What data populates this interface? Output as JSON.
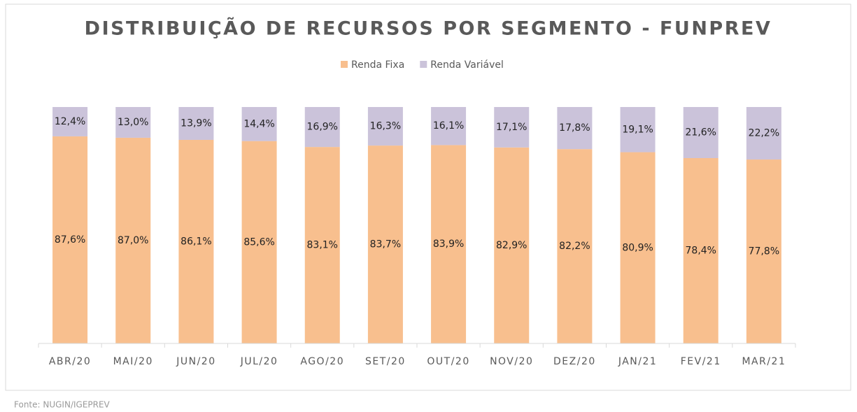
{
  "chart_data": {
    "type": "stacked_bar",
    "title": "DISTRIBUIÇÃO DE RECURSOS POR SEGMENTO - FUNPREV",
    "categories": [
      "ABR/20",
      "MAI/20",
      "JUN/20",
      "JUL/20",
      "AGO/20",
      "SET/20",
      "OUT/20",
      "NOV/20",
      "DEZ/20",
      "JAN/21",
      "FEV/21",
      "MAR/21"
    ],
    "series": [
      {
        "name": "Renda Fixa",
        "color": "#f8bf8e",
        "values": [
          87.6,
          87.0,
          86.1,
          85.6,
          83.1,
          83.7,
          83.9,
          82.9,
          82.2,
          80.9,
          78.4,
          77.8
        ],
        "value_labels": [
          "87,6%",
          "87,0%",
          "86,1%",
          "85,6%",
          "83,1%",
          "83,7%",
          "83,9%",
          "82,9%",
          "82,2%",
          "80,9%",
          "78,4%",
          "77,8%"
        ]
      },
      {
        "name": "Renda Variável",
        "color": "#cbc3da",
        "values": [
          12.4,
          13.0,
          13.9,
          14.4,
          16.9,
          16.3,
          16.1,
          17.1,
          17.8,
          19.1,
          21.6,
          22.2
        ],
        "value_labels": [
          "12,4%",
          "13,0%",
          "13,9%",
          "14,4%",
          "16,9%",
          "16,3%",
          "16,1%",
          "17,1%",
          "17,8%",
          "19,1%",
          "21,6%",
          "22,2%"
        ]
      }
    ],
    "ylim": [
      0,
      100
    ],
    "legend": "top",
    "source": "Fonte: NUGIN/IGEPREV"
  }
}
